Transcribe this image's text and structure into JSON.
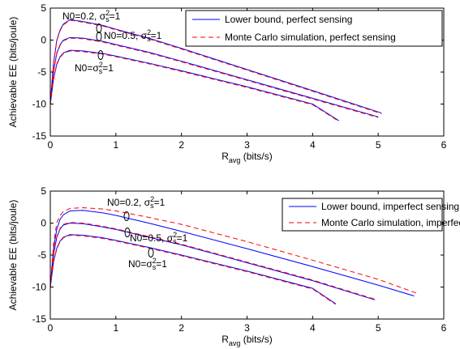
{
  "chart_data": [
    {
      "type": "line",
      "xlabel_main": "R",
      "xlabel_sub": "avg",
      "xlabel_unit": " (bits/s)",
      "ylabel": "Achievable EE (bits/joule)",
      "xlim": [
        0,
        6
      ],
      "ylim": [
        -15,
        5
      ],
      "xticks": [
        "0",
        "1",
        "2",
        "3",
        "4",
        "5",
        "6"
      ],
      "yticks": [
        "5",
        "0",
        "-5",
        "-10",
        "-15"
      ],
      "grid": false,
      "legend_position": "top-right",
      "legend": [
        {
          "label": "Lower bound, perfect sensing",
          "color": "#0000ff",
          "style": "solid"
        },
        {
          "label": "Monte Carlo simulation, perfect sensing",
          "color": "#ff0000",
          "style": "dashed"
        }
      ],
      "annotations": [
        {
          "base": "N0=0.2, σ",
          "sup": "2",
          "sub": "s",
          "tail": "=1"
        },
        {
          "base": "N0=0.5, σ",
          "sup": "2",
          "sub": "s",
          "tail": "=1"
        },
        {
          "base": "N0=σ",
          "sup": "2",
          "sub": "s",
          "tail": "=1"
        }
      ],
      "series": [
        {
          "legend": 0,
          "color": "#0000ff",
          "style": "solid",
          "x": [
            0,
            0.05,
            0.1,
            0.15,
            0.2,
            0.3,
            0.5,
            0.8,
            1.0,
            1.5,
            2.0,
            3.0,
            4.0,
            5.05
          ],
          "y": [
            -10,
            -3.5,
            0,
            1.6,
            2.5,
            3.2,
            2.9,
            2.3,
            1.7,
            0.3,
            -1.3,
            -4.6,
            -7.9,
            -11.4
          ]
        },
        {
          "legend": 1,
          "color": "#ff0000",
          "style": "dashed",
          "x": [
            0,
            0.05,
            0.1,
            0.15,
            0.2,
            0.3,
            0.5,
            0.8,
            1.0,
            1.5,
            2.0,
            3.0,
            4.0,
            5.05
          ],
          "y": [
            -10,
            -3.6,
            -0.1,
            1.5,
            2.4,
            3.1,
            2.8,
            2.2,
            1.6,
            0.2,
            -1.4,
            -4.7,
            -8.0,
            -11.5
          ]
        },
        {
          "legend": 0,
          "color": "#0000ff",
          "style": "solid",
          "x": [
            0,
            0.05,
            0.1,
            0.15,
            0.2,
            0.3,
            0.5,
            0.8,
            1.0,
            1.5,
            2.0,
            3.0,
            4.0,
            5.0
          ],
          "y": [
            -10,
            -4.8,
            -2.0,
            -0.7,
            0,
            0.4,
            0.3,
            -0.2,
            -0.7,
            -1.9,
            -3.3,
            -6.2,
            -9.1,
            -12.0
          ]
        },
        {
          "legend": 1,
          "color": "#ff0000",
          "style": "dashed",
          "x": [
            0,
            0.05,
            0.1,
            0.15,
            0.2,
            0.3,
            0.5,
            0.8,
            1.0,
            1.5,
            2.0,
            3.0,
            4.0,
            5.0
          ],
          "y": [
            -10,
            -4.9,
            -2.1,
            -0.8,
            -0.1,
            0.3,
            0.2,
            -0.3,
            -0.8,
            -2.0,
            -3.4,
            -6.3,
            -9.2,
            -12.1
          ]
        },
        {
          "legend": 0,
          "color": "#0000ff",
          "style": "solid",
          "x": [
            0,
            0.05,
            0.1,
            0.15,
            0.2,
            0.3,
            0.5,
            0.8,
            1.0,
            1.5,
            2.0,
            3.0,
            4.0,
            4.4
          ],
          "y": [
            -10,
            -6.0,
            -3.7,
            -2.6,
            -2.0,
            -1.6,
            -1.7,
            -2.1,
            -2.5,
            -3.6,
            -4.8,
            -7.3,
            -10.0,
            -12.6
          ]
        },
        {
          "legend": 1,
          "color": "#ff0000",
          "style": "dashed",
          "x": [
            0,
            0.05,
            0.1,
            0.15,
            0.2,
            0.3,
            0.5,
            0.8,
            1.0,
            1.5,
            2.0,
            3.0,
            4.0,
            4.4
          ],
          "y": [
            -10,
            -6.1,
            -3.8,
            -2.7,
            -2.1,
            -1.7,
            -1.8,
            -2.2,
            -2.6,
            -3.7,
            -4.9,
            -7.4,
            -10.1,
            -12.7
          ]
        }
      ]
    },
    {
      "type": "line",
      "xlabel_main": "R",
      "xlabel_sub": "avg",
      "xlabel_unit": " (bits/s)",
      "ylabel": "Achievable EE (bits/joule)",
      "xlim": [
        0,
        6
      ],
      "ylim": [
        -15,
        5
      ],
      "xticks": [
        "0",
        "1",
        "2",
        "3",
        "4",
        "5",
        "6"
      ],
      "yticks": [
        "5",
        "0",
        "-5",
        "-10",
        "-15"
      ],
      "grid": false,
      "legend_position": "top-right",
      "legend": [
        {
          "label": "Lower bound, imperfect sensing",
          "color": "#0000ff",
          "style": "solid"
        },
        {
          "label": "Monte Carlo simulation, imperfect sensing",
          "color": "#ff0000",
          "style": "dashed"
        }
      ],
      "annotations": [
        {
          "base": "N0=0.2, σ",
          "sup": "2",
          "sub": "s",
          "tail": "=1"
        },
        {
          "base": "N0=0.5, σ",
          "sup": "2",
          "sub": "s",
          "tail": "=1"
        },
        {
          "base": "N0=σ",
          "sup": "2",
          "sub": "s",
          "tail": "=1"
        }
      ],
      "series": [
        {
          "legend": 0,
          "color": "#0000ff",
          "style": "solid",
          "x": [
            0,
            0.05,
            0.1,
            0.15,
            0.2,
            0.3,
            0.5,
            0.8,
            1.0,
            1.5,
            2.0,
            3.0,
            4.0,
            5.0,
            5.55
          ],
          "y": [
            -10,
            -4.0,
            -0.9,
            0.6,
            1.3,
            1.9,
            2.0,
            1.6,
            1.2,
            0.0,
            -1.3,
            -4.0,
            -6.8,
            -9.7,
            -11.4
          ]
        },
        {
          "legend": 1,
          "color": "#ff0000",
          "style": "dashed",
          "x": [
            0,
            0.05,
            0.1,
            0.15,
            0.2,
            0.3,
            0.5,
            0.8,
            1.0,
            1.5,
            2.0,
            3.0,
            4.0,
            5.0,
            5.6
          ],
          "y": [
            -10,
            -3.2,
            0.1,
            1.2,
            1.8,
            2.3,
            2.4,
            2.2,
            1.9,
            0.9,
            -0.2,
            -2.9,
            -5.8,
            -8.8,
            -11.0
          ]
        },
        {
          "legend": 0,
          "color": "#0000ff",
          "style": "solid",
          "x": [
            0,
            0.05,
            0.1,
            0.15,
            0.2,
            0.3,
            0.5,
            0.8,
            1.0,
            1.5,
            2.0,
            3.0,
            4.0,
            4.95
          ],
          "y": [
            -10,
            -4.9,
            -2.2,
            -0.9,
            -0.3,
            0.0,
            -0.1,
            -0.6,
            -1.0,
            -2.2,
            -3.4,
            -6.2,
            -9.0,
            -12.0
          ]
        },
        {
          "legend": 1,
          "color": "#ff0000",
          "style": "dashed",
          "x": [
            0,
            0.05,
            0.1,
            0.15,
            0.2,
            0.3,
            0.5,
            0.8,
            1.0,
            1.5,
            2.0,
            3.0,
            4.0,
            4.95
          ],
          "y": [
            -10,
            -4.8,
            -2.1,
            -0.8,
            -0.2,
            0.1,
            0.0,
            -0.5,
            -0.9,
            -2.1,
            -3.3,
            -6.1,
            -8.9,
            -11.9
          ]
        },
        {
          "legend": 0,
          "color": "#0000ff",
          "style": "solid",
          "x": [
            0,
            0.05,
            0.1,
            0.15,
            0.2,
            0.3,
            0.5,
            0.8,
            1.0,
            1.5,
            2.0,
            3.0,
            4.0,
            4.35
          ],
          "y": [
            -10,
            -6.0,
            -3.9,
            -2.8,
            -2.2,
            -1.8,
            -1.9,
            -2.3,
            -2.7,
            -3.8,
            -5.0,
            -7.5,
            -10.2,
            -12.6
          ]
        },
        {
          "legend": 1,
          "color": "#ff0000",
          "style": "dashed",
          "x": [
            0,
            0.05,
            0.1,
            0.15,
            0.2,
            0.3,
            0.5,
            0.8,
            1.0,
            1.5,
            2.0,
            3.0,
            4.0,
            4.35
          ],
          "y": [
            -10,
            -6.1,
            -4.0,
            -2.9,
            -2.3,
            -1.9,
            -2.0,
            -2.4,
            -2.8,
            -3.9,
            -5.1,
            -7.6,
            -10.3,
            -12.7
          ]
        }
      ]
    }
  ]
}
